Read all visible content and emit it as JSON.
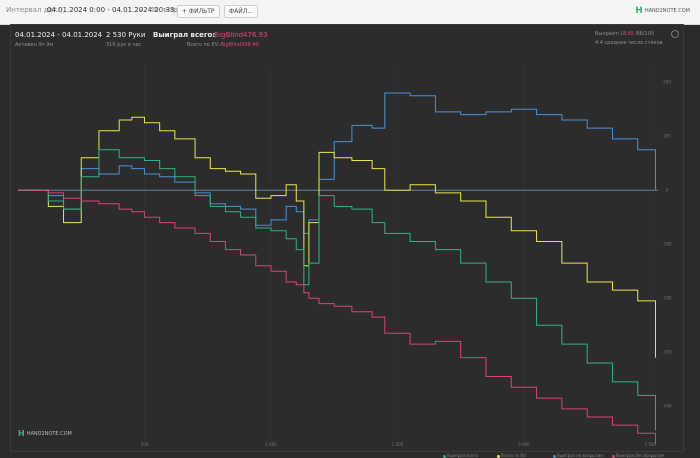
{
  "topbar": {
    "interval_label": "Интервал дат:",
    "interval_value": "04.01.2024 0:00 - 04.01.2024 20:33",
    "filters_label": "Фильтры",
    "filter_button": "+ ФИЛЬТР",
    "file_button": "ФАЙЛ...",
    "logo_text": "HAND2NOTE.COM"
  },
  "summary": {
    "date_range": "04.01.2024 - 04.01.2024",
    "active_label": "Активен 9ч 9м",
    "hands": "2 530 Руки",
    "hands_per_hour": "310 рук в час",
    "won_label": "Выиграл всего:",
    "won_value": "-BigBlind476.93",
    "ev_label": "Всего по EV:",
    "ev_value": "-BigBlind306.40",
    "showdown_label": "Вынрейт:",
    "showdown_value": "-18.85",
    "showdown_suffix": "BB/100",
    "avg_stack_label": "4.4 среднее число стеков"
  },
  "watermark": "HAND2NOTE.COM",
  "legend": [
    "Выиграл всего",
    "Всего по EV",
    "Выиграл на вскрытии",
    "Выиграл без вскрытия"
  ],
  "colors": {
    "blue": "#4a90d9",
    "yellow": "#e8e84a",
    "green": "#2fb37a",
    "pink": "#d9437a",
    "zero_line": "#6f8ea8"
  },
  "chart_data": {
    "type": "line",
    "x_ticks": [
      "500",
      "1 000",
      "1 500",
      "2 000",
      "2 500"
    ],
    "y_ticks": [
      "200",
      "100",
      "0",
      "-100",
      "-200",
      "-300",
      "-400"
    ],
    "xlim": [
      0,
      2530
    ],
    "ylim": [
      -470,
      230
    ],
    "series": [
      {
        "name": "Выиграл без вскрытия",
        "color": "#4a90d9",
        "x": [
          0,
          120,
          180,
          250,
          320,
          400,
          450,
          500,
          560,
          620,
          700,
          760,
          820,
          880,
          940,
          1000,
          1060,
          1100,
          1130,
          1150,
          1190,
          1250,
          1320,
          1400,
          1450,
          1550,
          1650,
          1750,
          1850,
          1950,
          2050,
          2150,
          2250,
          2350,
          2450,
          2520
        ],
        "values": [
          0,
          -10,
          -35,
          40,
          30,
          45,
          40,
          30,
          25,
          15,
          -5,
          -25,
          -30,
          -35,
          -65,
          -55,
          -30,
          -40,
          -80,
          -55,
          20,
          90,
          120,
          115,
          180,
          175,
          145,
          140,
          145,
          150,
          140,
          130,
          115,
          95,
          75,
          0
        ]
      },
      {
        "name": "Всего по EV",
        "color": "#e8e84a",
        "x": [
          0,
          120,
          180,
          250,
          320,
          400,
          450,
          500,
          560,
          620,
          700,
          760,
          820,
          880,
          940,
          1000,
          1060,
          1100,
          1130,
          1150,
          1190,
          1250,
          1320,
          1400,
          1450,
          1550,
          1650,
          1750,
          1850,
          1950,
          2050,
          2150,
          2250,
          2350,
          2450,
          2520
        ],
        "values": [
          0,
          -30,
          -60,
          60,
          110,
          130,
          135,
          125,
          110,
          95,
          60,
          40,
          35,
          30,
          -15,
          -10,
          10,
          -20,
          -140,
          -60,
          70,
          60,
          55,
          40,
          0,
          10,
          -5,
          -20,
          -50,
          -75,
          -95,
          -135,
          -170,
          -185,
          -205,
          -310
        ]
      },
      {
        "name": "Выиграл на вскрытии",
        "color": "#2fb37a",
        "x": [
          0,
          120,
          180,
          250,
          320,
          400,
          450,
          500,
          560,
          620,
          700,
          760,
          820,
          880,
          940,
          1000,
          1060,
          1100,
          1130,
          1150,
          1190,
          1250,
          1320,
          1400,
          1450,
          1550,
          1650,
          1750,
          1850,
          1950,
          2050,
          2150,
          2250,
          2350,
          2450,
          2520
        ],
        "values": [
          0,
          -20,
          -35,
          25,
          75,
          60,
          60,
          55,
          40,
          25,
          -10,
          -30,
          -40,
          -50,
          -70,
          -75,
          -90,
          -110,
          -175,
          -135,
          -10,
          -30,
          -35,
          -60,
          -80,
          -95,
          -110,
          -135,
          -170,
          -200,
          -250,
          -285,
          -320,
          -355,
          -380,
          -445
        ]
      },
      {
        "name": "Выиграл всего",
        "color": "#d9437a",
        "x": [
          0,
          120,
          180,
          250,
          320,
          400,
          450,
          500,
          560,
          620,
          700,
          760,
          820,
          880,
          940,
          1000,
          1060,
          1100,
          1130,
          1150,
          1190,
          1250,
          1320,
          1400,
          1450,
          1550,
          1650,
          1750,
          1850,
          1950,
          2050,
          2150,
          2250,
          2350,
          2450,
          2520
        ],
        "values": [
          0,
          -5,
          -15,
          -20,
          -25,
          -35,
          -40,
          -50,
          -60,
          -70,
          -80,
          -95,
          -110,
          -120,
          -140,
          -150,
          -170,
          -175,
          -190,
          -200,
          -210,
          -215,
          -225,
          -235,
          -265,
          -285,
          -280,
          -310,
          -345,
          -365,
          -385,
          -405,
          -420,
          -435,
          -450,
          -470
        ]
      }
    ]
  }
}
